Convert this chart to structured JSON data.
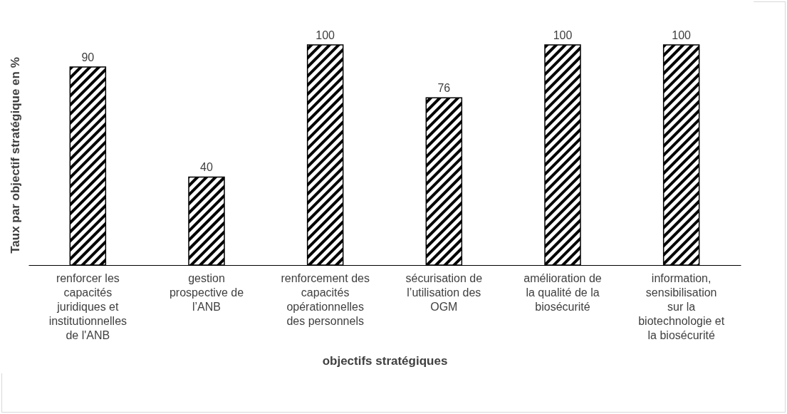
{
  "chart_data": {
    "type": "bar",
    "xlabel": "objectifs stratégiques",
    "ylabel": "Taux par objectif stratégique en %",
    "categories": [
      "renforcer les capacités juridiques et institutionnelles de l'ANB",
      "gestion prospective de l’ANB",
      "renforcement des capacités opérationnelles des personnels",
      "sécurisation de l’utilisation des OGM",
      "amélioration de la qualité de la biosécurité",
      "information, sensibilisation sur la biotechnologie et la biosécurité"
    ],
    "values": [
      90,
      40,
      100,
      76,
      100,
      100
    ],
    "color": "#000000",
    "data_labels": true,
    "relative": false,
    "grid": false
  }
}
